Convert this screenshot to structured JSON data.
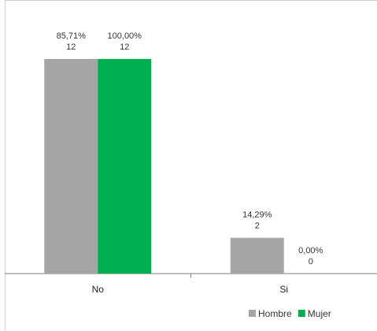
{
  "chart_data": {
    "type": "bar",
    "categories": [
      "No",
      "Si"
    ],
    "series": [
      {
        "name": "Hombre",
        "color": "#a5a5a5",
        "values": [
          12,
          2
        ],
        "percent_labels": [
          "85,71%",
          "14,29%"
        ]
      },
      {
        "name": "Mujer",
        "color": "#00b050",
        "values": [
          12,
          0
        ],
        "percent_labels": [
          "100,00%",
          "0,00%"
        ]
      }
    ],
    "title": "",
    "xlabel": "",
    "ylabel": "",
    "ylim": [
      0,
      12
    ],
    "grid": false,
    "legend_position": "bottom-right"
  }
}
